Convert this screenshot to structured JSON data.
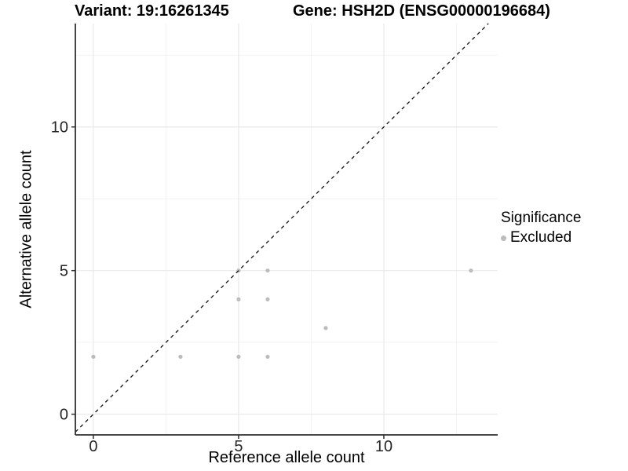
{
  "header": {
    "variant_title": "Variant: 19:16261345",
    "gene_title": "Gene: HSH2D (ENSG00000196684)"
  },
  "legend": {
    "title": "Significance",
    "items": [
      {
        "label": "Excluded",
        "color": "#bcbcbc"
      }
    ]
  },
  "chart_data": {
    "type": "scatter",
    "title": "Variant: 19:16261345 / Gene: HSH2D (ENSG00000196684)",
    "xlabel": "Reference allele count",
    "ylabel": "Alternative allele count",
    "xlim": [
      -0.62,
      13.92
    ],
    "ylim": [
      -0.72,
      13.6
    ],
    "x_ticks": [
      0,
      5,
      10
    ],
    "y_ticks": [
      0,
      5,
      10
    ],
    "x_tick_labels": [
      "0",
      "5",
      "10"
    ],
    "y_tick_labels": [
      "0",
      "5",
      "10"
    ],
    "x_minor_ticks": [
      2.5,
      7.5,
      12.5
    ],
    "y_minor_ticks": [
      2.5,
      7.5,
      12.5
    ],
    "grid": true,
    "legend_position": "right",
    "series": [
      {
        "name": "Excluded",
        "color": "#bcbcbc",
        "points": [
          [
            0,
            2
          ],
          [
            3,
            2
          ],
          [
            5,
            2
          ],
          [
            6,
            2
          ],
          [
            8,
            3
          ],
          [
            5,
            4
          ],
          [
            6,
            4
          ],
          [
            5,
            5
          ],
          [
            6,
            5
          ],
          [
            13,
            5
          ]
        ]
      }
    ],
    "identity_line": {
      "style": "dashed",
      "color": "#111111",
      "equation": "y = x"
    }
  },
  "colors": {
    "background": "#ffffff",
    "grid_major": "#e9e9e9",
    "grid_minor": "#f3f3f3",
    "axis_line": "#2f2f2f",
    "tick_text": "#262626",
    "point": "#bcbcbc"
  }
}
